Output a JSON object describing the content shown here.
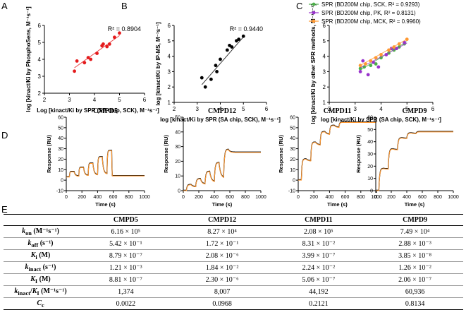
{
  "colors": {
    "red": "#e41a1c",
    "black": "#000000",
    "green": "#4daf4a",
    "purple": "#9933cc",
    "orange": "#ff9933",
    "fit": "#888888"
  },
  "panels": {
    "A": "A",
    "B": "B",
    "C": "C",
    "D": "D",
    "E": "E"
  },
  "chart_data": [
    {
      "id": "A",
      "type": "scatter",
      "title": "",
      "xlabel": "Log [k_inact/K_i by SPR (SA chip, SCK), M⁻¹s⁻¹]",
      "ylabel": "log [k_inact/K_i by PhosphoSens, M⁻¹s⁻¹]",
      "xlim": [
        2,
        6
      ],
      "ylim": [
        2,
        6
      ],
      "xticks": [
        "2",
        "3",
        "4",
        "5",
        "6"
      ],
      "yticks": [
        "2",
        "3",
        "4",
        "5",
        "6"
      ],
      "annotation": "R² = 0.8904",
      "series": [
        {
          "name": "data",
          "color": "red",
          "x": [
            3.2,
            3.3,
            3.6,
            3.75,
            3.85,
            4.1,
            4.3,
            4.35,
            4.5,
            4.6,
            4.8,
            5.0
          ],
          "y": [
            3.3,
            3.9,
            3.8,
            4.1,
            4.0,
            4.35,
            4.8,
            4.9,
            4.75,
            4.9,
            5.3,
            5.55
          ],
          "fit": [
            [
              3.2,
              3.5
            ],
            [
              5.0,
              5.4
            ]
          ]
        }
      ]
    },
    {
      "id": "B",
      "type": "scatter",
      "xlabel": "log [k_inact/K_i by SPR (SA chip, SCK), M⁻¹s⁻¹]",
      "ylabel": "log [k_inact/K_i by IP-MS, M⁻¹s⁻¹]",
      "xlim": [
        2,
        6
      ],
      "ylim": [
        1,
        6
      ],
      "xticks": [
        "2",
        "3",
        "4",
        "5",
        "6"
      ],
      "yticks": [
        "1",
        "2",
        "3",
        "4",
        "5",
        "6"
      ],
      "annotation": "R² = 0.9440",
      "series": [
        {
          "name": "data",
          "color": "black",
          "x": [
            3.2,
            3.35,
            3.6,
            3.8,
            3.85,
            4.0,
            4.3,
            4.4,
            4.5,
            4.7,
            4.8,
            5.0
          ],
          "y": [
            2.6,
            2.0,
            2.5,
            3.4,
            3.0,
            3.8,
            4.4,
            4.7,
            4.6,
            5.0,
            5.1,
            5.3
          ],
          "fit": [
            [
              3.2,
              2.15
            ],
            [
              5.0,
              5.25
            ]
          ]
        }
      ]
    },
    {
      "id": "C",
      "type": "scatter",
      "xlabel": "log [k_inact/K_i by SPR (SA chip, SCK), M⁻¹s⁻¹]",
      "ylabel": "log [k_inact/K_i by other SPR methods, M⁻¹s⁻¹]",
      "xlim": [
        2,
        6
      ],
      "ylim": [
        1,
        6
      ],
      "xticks": [
        "2",
        "3",
        "4",
        "5",
        "6"
      ],
      "yticks": [
        "1",
        "2",
        "3",
        "4",
        "5",
        "6"
      ],
      "series": [
        {
          "name": "SPR (BD200M chip, SCK, R² = 0.9293)",
          "color": "green",
          "x": [
            3.2,
            3.35,
            3.6,
            3.8,
            4.0,
            4.3,
            4.5,
            4.7,
            4.9
          ],
          "y": [
            3.2,
            3.3,
            3.4,
            3.5,
            3.9,
            4.2,
            4.4,
            4.6,
            4.8
          ],
          "fit": [
            [
              3.2,
              3.1
            ],
            [
              5.0,
              4.95
            ]
          ]
        },
        {
          "name": "SPR (BD200M chip, PK, R² = 0.8131)",
          "color": "purple",
          "x": [
            3.2,
            3.3,
            3.5,
            3.7,
            3.9,
            4.2,
            4.4,
            4.6,
            4.9
          ],
          "y": [
            3.0,
            3.7,
            2.8,
            3.6,
            3.3,
            4.1,
            4.5,
            4.5,
            4.9
          ],
          "fit": [
            [
              3.2,
              3.25
            ],
            [
              5.0,
              4.85
            ]
          ]
        },
        {
          "name": "SPR (BD200M chip, MCK, R² = 0.9960)",
          "color": "orange",
          "x": [
            3.2,
            3.4,
            3.6,
            3.8,
            4.0,
            4.3,
            4.5,
            4.7,
            5.0
          ],
          "y": [
            3.4,
            3.5,
            3.7,
            3.9,
            4.1,
            4.4,
            4.6,
            4.8,
            5.1
          ],
          "fit": [
            [
              3.2,
              3.4
            ],
            [
              5.0,
              5.1
            ]
          ]
        }
      ]
    },
    {
      "id": "D1",
      "type": "line",
      "title": "CMPD5",
      "xlabel": "Time (s)",
      "ylabel": "Response (RU)",
      "xlim": [
        0,
        1000
      ],
      "ylim": [
        -10,
        60
      ],
      "xticks": [
        "0",
        "200",
        "400",
        "600",
        "800",
        "1000"
      ],
      "yticks": [
        "-10",
        "0",
        "10",
        "20",
        "30",
        "40",
        "50",
        "60"
      ],
      "sensorgram": {
        "n": 5,
        "period": 120,
        "assoc": 60,
        "levels": [
          8,
          12,
          16,
          22,
          28
        ],
        "base": 3,
        "tau": 5,
        "dtau": 14
      }
    },
    {
      "id": "D2",
      "type": "line",
      "title": "CMPD12",
      "xlabel": "Time (s)",
      "ylabel": "Response (RU)",
      "xlim": [
        0,
        1000
      ],
      "ylim": [
        0,
        50
      ],
      "xticks": [
        "0",
        "200",
        "400",
        "600",
        "800",
        "1000"
      ],
      "yticks": [
        "0",
        "10",
        "20",
        "30",
        "40",
        "50"
      ],
      "sensorgram": {
        "n": 5,
        "period": 120,
        "assoc": 60,
        "levels": [
          4,
          8,
          13,
          19,
          28
        ],
        "drop": [
          0.35,
          0.45,
          0.55,
          0.55,
          0.1
        ],
        "base": 0,
        "tau": 10,
        "dtau": 20,
        "final": 26
      }
    },
    {
      "id": "D3",
      "type": "line",
      "title": "CMPD11",
      "xlabel": "Time (s)",
      "ylabel": "Response (RU)",
      "xlim": [
        0,
        1000
      ],
      "ylim": [
        -10,
        60
      ],
      "xticks": [
        "0",
        "200",
        "400",
        "600",
        "800",
        "1000"
      ],
      "yticks": [
        "-10",
        "0",
        "10",
        "20",
        "30",
        "40",
        "50",
        "60"
      ],
      "sensorgram": {
        "n": 5,
        "period": 120,
        "assoc": 60,
        "levels": [
          20,
          36,
          46,
          52,
          55
        ],
        "drop": [
          0.1,
          0.08,
          0.06,
          0.04,
          0.02
        ],
        "base": 0,
        "tau": 8,
        "dtau": 30,
        "final": 55
      }
    },
    {
      "id": "D4",
      "type": "line",
      "title": "CMPD9",
      "xlabel": "Time (s)",
      "ylabel": "Response (RU)",
      "xlim": [
        0,
        1000
      ],
      "ylim": [
        0,
        60
      ],
      "xticks": [
        "0",
        "200",
        "400",
        "600",
        "800",
        "1000"
      ],
      "yticks": [
        "0",
        "10",
        "20",
        "30",
        "40",
        "50",
        "60"
      ],
      "sensorgram": {
        "n": 5,
        "period": 120,
        "assoc": 60,
        "levels": [
          18,
          34,
          43,
          47,
          48
        ],
        "drop": [
          0.02,
          0.02,
          0.01,
          0.01,
          0.0
        ],
        "base": 0,
        "tau": 10,
        "dtau": 30,
        "final": 48
      }
    }
  ],
  "table": {
    "headers": [
      "",
      "CMPD5",
      "CMPD12",
      "CMPD11",
      "CMPD9"
    ],
    "rows": [
      [
        "k_on (M⁻¹s⁻¹)",
        "6.16 × 10⁵",
        "8.27 × 10⁴",
        "2.08 × 10⁵",
        "7.49 × 10⁴"
      ],
      [
        "k_off (s⁻¹)",
        "5.42 × 10⁻¹",
        "1.72 × 10⁻¹",
        "8.31 × 10⁻²",
        "2.88 × 10⁻³"
      ],
      [
        "K_i (M)",
        "8.79 × 10⁻⁷",
        "2.08 × 10⁻⁶",
        "3.99 × 10⁻⁷",
        "3.85 × 10⁻⁸"
      ],
      [
        "k_inact (s⁻¹)",
        "1.21 × 10⁻³",
        "1.84 × 10⁻²",
        "2.24 × 10⁻²",
        "1.26 × 10⁻²"
      ],
      [
        "K_I (M)",
        "8.81 × 10⁻⁷",
        "2.30 × 10⁻⁶",
        "5.06 × 10⁻⁷",
        "2.06 × 10⁻⁷"
      ],
      [
        "k_inact/K_I (M⁻¹s⁻¹)",
        "1,374",
        "8,007",
        "44,192",
        "60,936"
      ],
      [
        "C_c",
        "0.0022",
        "0.0968",
        "0.2121",
        "0.8134"
      ]
    ]
  }
}
